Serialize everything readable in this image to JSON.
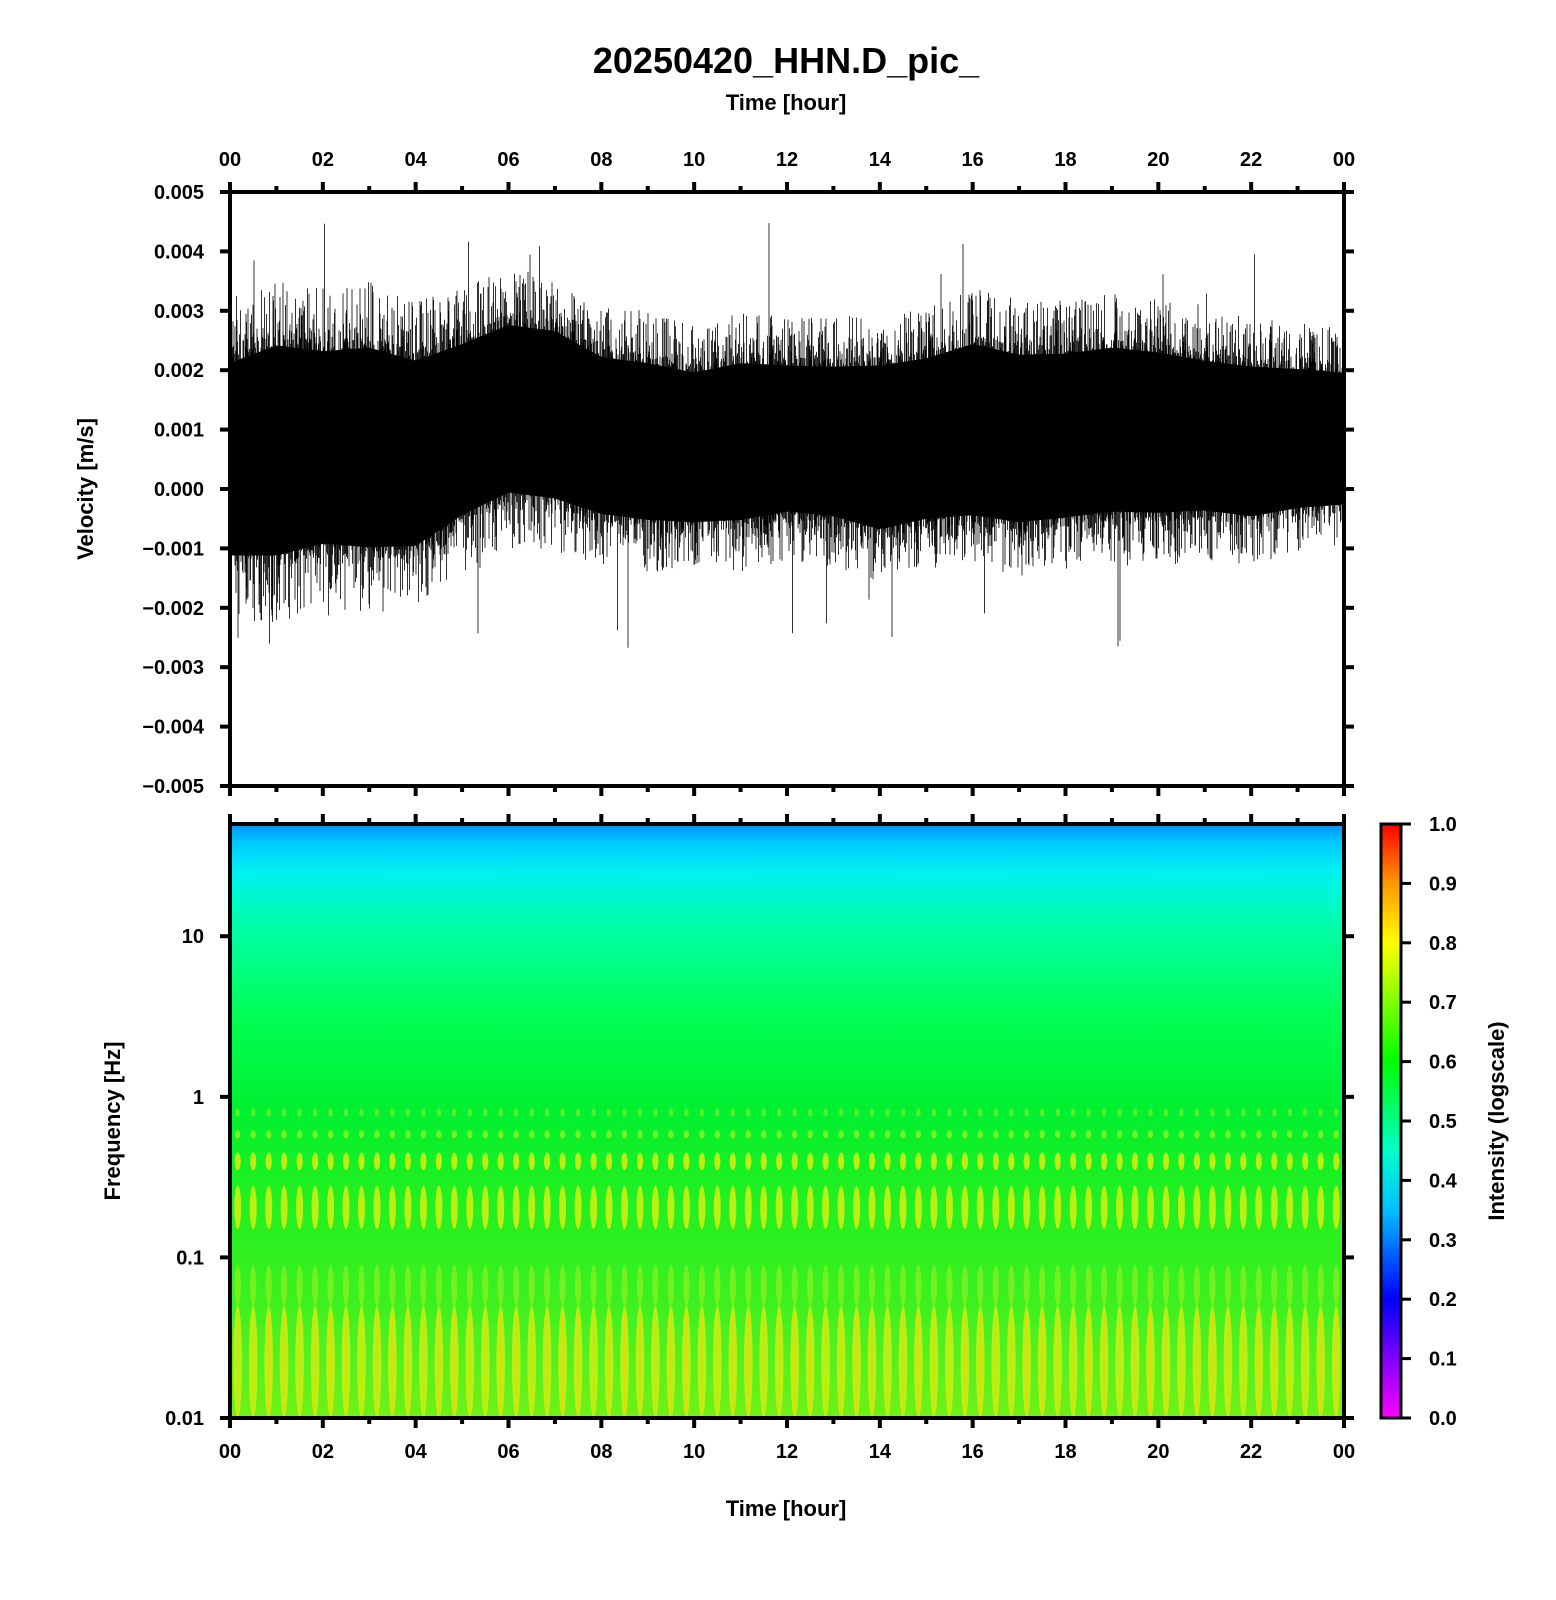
{
  "chart_data": [
    {
      "type": "line",
      "title": "20250420_HHN.D_pic_",
      "xlabel": "Time [hour]",
      "ylabel": "Velocity [m/s]",
      "x_tick_labels": [
        "00",
        "02",
        "04",
        "06",
        "08",
        "10",
        "12",
        "14",
        "16",
        "18",
        "20",
        "22",
        "00"
      ],
      "x_range_hours": [
        0,
        24
      ],
      "y_tick_labels": [
        "0.005",
        "0.004",
        "0.003",
        "0.002",
        "0.001",
        "0.000",
        "−0.001",
        "−0.002",
        "−0.003",
        "−0.004",
        "−0.005"
      ],
      "ylim": [
        -0.005,
        0.005
      ],
      "series": [
        {
          "color": "#000000",
          "envelope_hours": [
            0,
            1,
            2,
            3,
            4,
            5,
            6,
            7,
            8,
            9,
            10,
            11,
            12,
            13,
            14,
            15,
            16,
            17,
            18,
            19,
            20,
            21,
            22,
            23,
            24
          ],
          "envelope_upper": [
            0.0032,
            0.0036,
            0.0034,
            0.0035,
            0.0032,
            0.0034,
            0.0037,
            0.0036,
            0.0031,
            0.003,
            0.0028,
            0.003,
            0.0029,
            0.0029,
            0.003,
            0.0031,
            0.0034,
            0.0032,
            0.0032,
            0.0033,
            0.0032,
            0.003,
            0.0029,
            0.0028,
            0.0027
          ],
          "envelope_lower": [
            -0.0022,
            -0.0023,
            -0.002,
            -0.0021,
            -0.002,
            -0.0014,
            -0.001,
            -0.0011,
            -0.0013,
            -0.0014,
            -0.0014,
            -0.0014,
            -0.0012,
            -0.0013,
            -0.0016,
            -0.0014,
            -0.0014,
            -0.0015,
            -0.0014,
            -0.0013,
            -0.0013,
            -0.0012,
            -0.0013,
            -0.0011,
            -0.001
          ],
          "peak_max": 0.0045,
          "peak_min": -0.0027
        }
      ]
    },
    {
      "type": "heatmap",
      "xlabel": "Time [hour]",
      "ylabel": "Frequency [Hz]",
      "x_tick_labels": [
        "00",
        "02",
        "04",
        "06",
        "08",
        "10",
        "12",
        "14",
        "16",
        "18",
        "20",
        "22",
        "00"
      ],
      "x_range_hours": [
        0,
        24
      ],
      "y_scale": "log",
      "y_tick_labels": [
        "10",
        "1",
        "0.1",
        "0.01"
      ],
      "y_tick_values": [
        10,
        1,
        0.1,
        0.01
      ],
      "ylim": [
        0.01,
        50
      ],
      "colorbar": {
        "label": "Intensity (logscale)",
        "tick_labels": [
          "1.0",
          "0.9",
          "0.8",
          "0.7",
          "0.6",
          "0.5",
          "0.4",
          "0.3",
          "0.2",
          "0.1",
          "0.0"
        ],
        "range": [
          0.0,
          1.0
        ],
        "colormap": [
          "#ff00ff",
          "#0000ff",
          "#00bfff",
          "#00ffcc",
          "#00ff00",
          "#ffff00",
          "#ff9900",
          "#ff0000"
        ]
      },
      "intensity_profile": {
        "frequency_hz": [
          50,
          35,
          20,
          10,
          3,
          1,
          0.5,
          0.3,
          0.1,
          0.05,
          0.02,
          0.01
        ],
        "intensity": [
          0.4,
          0.43,
          0.47,
          0.53,
          0.57,
          0.6,
          0.64,
          0.62,
          0.62,
          0.66,
          0.68,
          0.71
        ]
      },
      "band_period_hours": 0.3333
    }
  ]
}
